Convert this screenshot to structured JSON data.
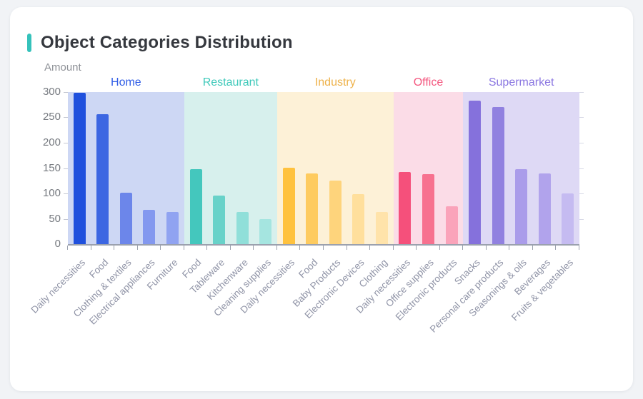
{
  "card": {
    "title": "Object Categories Distribution",
    "accent_color": "#35c2bb"
  },
  "y_axis": {
    "title": "Amount",
    "ticks": [
      0,
      50,
      100,
      150,
      200,
      250,
      300
    ],
    "max": 300
  },
  "chart_data": {
    "type": "bar",
    "title": "Object Categories Distribution",
    "xlabel": "",
    "ylabel": "Amount",
    "ylim": [
      0,
      300
    ],
    "grid": false,
    "legend_position": "top-inline-group-labels",
    "x_label_rotation_deg": 45,
    "groups": [
      {
        "name": "Home",
        "label_color": "#2f5ce6",
        "band_color": "#cdd7f4",
        "bars": [
          {
            "label": "Daily necessities",
            "value": 298,
            "color": "#1f50dd"
          },
          {
            "label": "Food",
            "value": 257,
            "color": "#3c66e2"
          },
          {
            "label": "Clothing & textiles",
            "value": 102,
            "color": "#6c86ea"
          },
          {
            "label": "Electrical appliances",
            "value": 68,
            "color": "#8398ef"
          },
          {
            "label": "Furniture",
            "value": 63,
            "color": "#90a3f1"
          }
        ]
      },
      {
        "name": "Restaurant",
        "label_color": "#3ec9ba",
        "band_color": "#d7f0ed",
        "bars": [
          {
            "label": "Food",
            "value": 148,
            "color": "#44c7bd"
          },
          {
            "label": "Tableware",
            "value": 96,
            "color": "#68d2c9"
          },
          {
            "label": "Kitchenware",
            "value": 64,
            "color": "#90dfd9"
          },
          {
            "label": "Cleaning supplies",
            "value": 50,
            "color": "#a5e5e0"
          }
        ]
      },
      {
        "name": "Industry",
        "label_color": "#eeb24a",
        "band_color": "#fdf1d7",
        "bars": [
          {
            "label": "Daily necessities",
            "value": 151,
            "color": "#ffc23e"
          },
          {
            "label": "Food",
            "value": 139,
            "color": "#fecb5f"
          },
          {
            "label": "Baby Products",
            "value": 126,
            "color": "#fed47c"
          },
          {
            "label": "Electronic Devices",
            "value": 99,
            "color": "#ffdf9c"
          },
          {
            "label": "Clothing",
            "value": 63,
            "color": "#ffe3aa"
          }
        ]
      },
      {
        "name": "Office",
        "label_color": "#f4577f",
        "band_color": "#fbdce7",
        "bars": [
          {
            "label": "Daily necessities",
            "value": 142,
            "color": "#f5507b"
          },
          {
            "label": "Office supplies",
            "value": 138,
            "color": "#f7718f"
          },
          {
            "label": "Electronic products",
            "value": 74,
            "color": "#faa3ba"
          }
        ]
      },
      {
        "name": "Supermarket",
        "label_color": "#8a76e1",
        "band_color": "#ded9f5",
        "bars": [
          {
            "label": "Snacks",
            "value": 283,
            "color": "#8571dc"
          },
          {
            "label": "Personal care products",
            "value": 270,
            "color": "#9181e0"
          },
          {
            "label": "Seasonings & oils",
            "value": 148,
            "color": "#aa9cea"
          },
          {
            "label": "Beverages",
            "value": 140,
            "color": "#b1a3ec"
          },
          {
            "label": "Fruits & vegetables",
            "value": 100,
            "color": "#c5bbf1"
          }
        ]
      }
    ]
  }
}
